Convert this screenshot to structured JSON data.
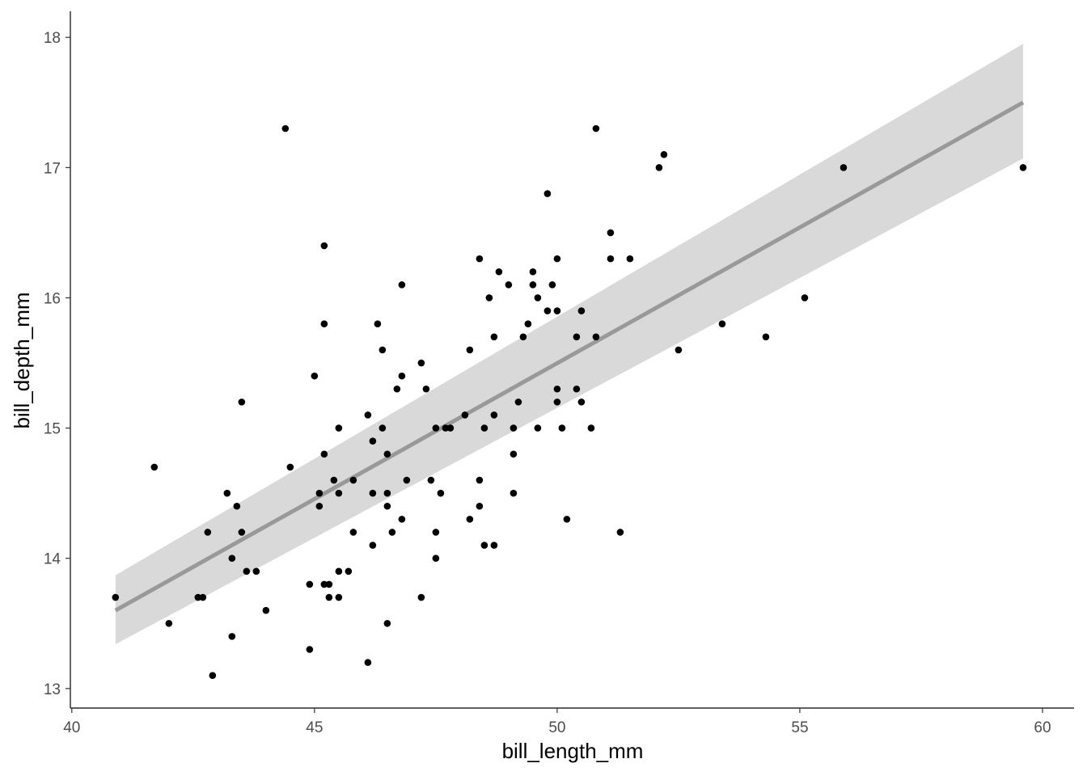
{
  "chart_data": {
    "type": "scatter",
    "title": "",
    "xlabel": "bill_length_mm",
    "ylabel": "bill_depth_mm",
    "xlim": [
      39.97,
      60.65
    ],
    "ylim": [
      12.85,
      18.2
    ],
    "x_ticks": [
      40,
      45,
      50,
      55,
      60
    ],
    "y_ticks": [
      13,
      14,
      15,
      16,
      17,
      18
    ],
    "x_tick_labels": [
      "40",
      "45",
      "50",
      "55",
      "60"
    ],
    "y_tick_labels": [
      "13",
      "14",
      "15",
      "16",
      "17",
      "18"
    ],
    "grid": false,
    "legend": "none",
    "points": [
      {
        "x": 40.9,
        "y": 13.7
      },
      {
        "x": 41.7,
        "y": 14.7
      },
      {
        "x": 42.0,
        "y": 13.5
      },
      {
        "x": 42.6,
        "y": 13.7
      },
      {
        "x": 42.7,
        "y": 13.7
      },
      {
        "x": 42.8,
        "y": 14.2
      },
      {
        "x": 42.9,
        "y": 13.1
      },
      {
        "x": 43.2,
        "y": 14.5
      },
      {
        "x": 43.3,
        "y": 14.0
      },
      {
        "x": 43.3,
        "y": 13.4
      },
      {
        "x": 43.4,
        "y": 14.4
      },
      {
        "x": 43.5,
        "y": 15.2
      },
      {
        "x": 43.5,
        "y": 14.2
      },
      {
        "x": 43.6,
        "y": 13.9
      },
      {
        "x": 43.8,
        "y": 13.9
      },
      {
        "x": 44.0,
        "y": 13.6
      },
      {
        "x": 44.4,
        "y": 17.3
      },
      {
        "x": 44.5,
        "y": 14.7
      },
      {
        "x": 44.9,
        "y": 13.8
      },
      {
        "x": 44.9,
        "y": 13.3
      },
      {
        "x": 45.0,
        "y": 15.4
      },
      {
        "x": 45.1,
        "y": 14.5
      },
      {
        "x": 45.1,
        "y": 14.4
      },
      {
        "x": 45.2,
        "y": 16.4
      },
      {
        "x": 45.2,
        "y": 15.8
      },
      {
        "x": 45.2,
        "y": 14.8
      },
      {
        "x": 45.2,
        "y": 13.8
      },
      {
        "x": 45.3,
        "y": 13.8
      },
      {
        "x": 45.3,
        "y": 13.7
      },
      {
        "x": 45.4,
        "y": 14.6
      },
      {
        "x": 45.5,
        "y": 15.0
      },
      {
        "x": 45.5,
        "y": 14.5
      },
      {
        "x": 45.5,
        "y": 13.9
      },
      {
        "x": 45.5,
        "y": 13.7
      },
      {
        "x": 45.7,
        "y": 13.9
      },
      {
        "x": 45.8,
        "y": 14.6
      },
      {
        "x": 45.8,
        "y": 14.2
      },
      {
        "x": 46.1,
        "y": 15.1
      },
      {
        "x": 46.1,
        "y": 13.2
      },
      {
        "x": 46.2,
        "y": 14.9
      },
      {
        "x": 46.2,
        "y": 14.5
      },
      {
        "x": 46.2,
        "y": 14.1
      },
      {
        "x": 46.3,
        "y": 15.8
      },
      {
        "x": 46.4,
        "y": 15.6
      },
      {
        "x": 46.4,
        "y": 15.0
      },
      {
        "x": 46.5,
        "y": 14.8
      },
      {
        "x": 46.5,
        "y": 14.5
      },
      {
        "x": 46.5,
        "y": 14.4
      },
      {
        "x": 46.5,
        "y": 13.5
      },
      {
        "x": 46.6,
        "y": 14.2
      },
      {
        "x": 46.7,
        "y": 15.3
      },
      {
        "x": 46.8,
        "y": 16.1
      },
      {
        "x": 46.8,
        "y": 15.4
      },
      {
        "x": 46.8,
        "y": 14.3
      },
      {
        "x": 46.9,
        "y": 14.6
      },
      {
        "x": 47.2,
        "y": 15.5
      },
      {
        "x": 47.2,
        "y": 13.7
      },
      {
        "x": 47.3,
        "y": 15.3
      },
      {
        "x": 47.4,
        "y": 14.6
      },
      {
        "x": 47.5,
        "y": 15.0
      },
      {
        "x": 47.5,
        "y": 14.2
      },
      {
        "x": 47.5,
        "y": 14.0
      },
      {
        "x": 47.6,
        "y": 14.5
      },
      {
        "x": 47.7,
        "y": 15.0
      },
      {
        "x": 47.8,
        "y": 15.0
      },
      {
        "x": 48.1,
        "y": 15.1
      },
      {
        "x": 48.2,
        "y": 15.6
      },
      {
        "x": 48.2,
        "y": 14.3
      },
      {
        "x": 48.4,
        "y": 16.3
      },
      {
        "x": 48.4,
        "y": 14.6
      },
      {
        "x": 48.4,
        "y": 14.4
      },
      {
        "x": 48.5,
        "y": 15.0
      },
      {
        "x": 48.5,
        "y": 14.1
      },
      {
        "x": 48.6,
        "y": 16.0
      },
      {
        "x": 48.7,
        "y": 15.7
      },
      {
        "x": 48.7,
        "y": 15.1
      },
      {
        "x": 48.7,
        "y": 14.1
      },
      {
        "x": 48.8,
        "y": 16.2
      },
      {
        "x": 49.0,
        "y": 16.1
      },
      {
        "x": 49.1,
        "y": 15.0
      },
      {
        "x": 49.1,
        "y": 14.8
      },
      {
        "x": 49.1,
        "y": 14.5
      },
      {
        "x": 49.2,
        "y": 15.2
      },
      {
        "x": 49.3,
        "y": 15.7
      },
      {
        "x": 49.4,
        "y": 15.8
      },
      {
        "x": 49.5,
        "y": 16.2
      },
      {
        "x": 49.5,
        "y": 16.1
      },
      {
        "x": 49.6,
        "y": 16.0
      },
      {
        "x": 49.6,
        "y": 15.0
      },
      {
        "x": 49.8,
        "y": 16.8
      },
      {
        "x": 49.8,
        "y": 15.9
      },
      {
        "x": 49.9,
        "y": 16.1
      },
      {
        "x": 50.0,
        "y": 16.3
      },
      {
        "x": 50.0,
        "y": 15.9
      },
      {
        "x": 50.0,
        "y": 15.3
      },
      {
        "x": 50.0,
        "y": 15.2
      },
      {
        "x": 50.1,
        "y": 15.0
      },
      {
        "x": 50.2,
        "y": 14.3
      },
      {
        "x": 50.4,
        "y": 15.7
      },
      {
        "x": 50.4,
        "y": 15.3
      },
      {
        "x": 50.5,
        "y": 15.9
      },
      {
        "x": 50.5,
        "y": 15.2
      },
      {
        "x": 50.7,
        "y": 15.0
      },
      {
        "x": 50.8,
        "y": 17.3
      },
      {
        "x": 50.8,
        "y": 15.7
      },
      {
        "x": 51.1,
        "y": 16.5
      },
      {
        "x": 51.1,
        "y": 16.3
      },
      {
        "x": 51.3,
        "y": 14.2
      },
      {
        "x": 51.5,
        "y": 16.3
      },
      {
        "x": 52.1,
        "y": 17.0
      },
      {
        "x": 52.2,
        "y": 17.1
      },
      {
        "x": 52.5,
        "y": 15.6
      },
      {
        "x": 53.4,
        "y": 15.8
      },
      {
        "x": 54.3,
        "y": 15.7
      },
      {
        "x": 55.1,
        "y": 16.0
      },
      {
        "x": 55.9,
        "y": 17.0
      },
      {
        "x": 59.6,
        "y": 17.0
      }
    ],
    "smooth": {
      "method": "lm",
      "x": [
        40.9,
        59.6
      ],
      "y": [
        13.6,
        17.5
      ],
      "ci_lower": [
        13.34,
        17.07
      ],
      "ci_upper": [
        13.87,
        17.95
      ],
      "line_color": "#999999",
      "band_color": "#d9d9d9"
    },
    "point_color": "#000000"
  }
}
